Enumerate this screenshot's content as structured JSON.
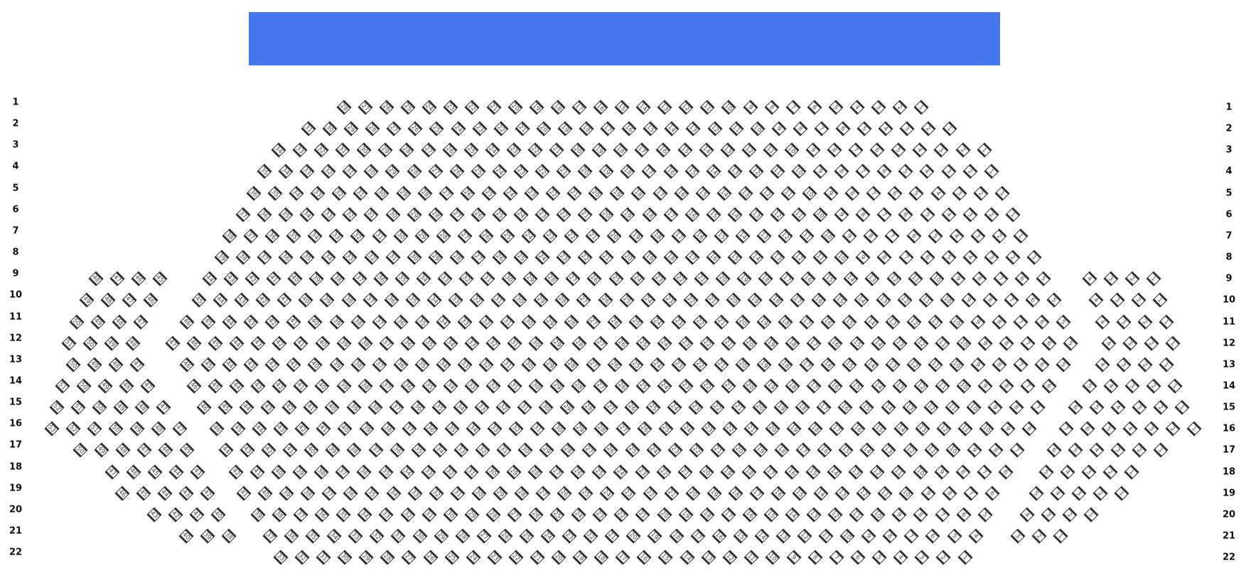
{
  "stage": {
    "color": "#4477ED"
  },
  "seat_style": {
    "border": "#333333",
    "fill": "#ffffff",
    "icon": "seat-icon"
  },
  "rows": [
    {
      "label": "1",
      "sections": [
        {
          "name": "center",
          "from": 28,
          "to": 1
        }
      ]
    },
    {
      "label": "2",
      "sections": [
        {
          "name": "center",
          "from": 31,
          "to": 1
        }
      ]
    },
    {
      "label": "3",
      "sections": [
        {
          "name": "center",
          "from": 34,
          "to": 1
        }
      ]
    },
    {
      "label": "4",
      "sections": [
        {
          "name": "center",
          "from": 35,
          "to": 1
        }
      ]
    },
    {
      "label": "5",
      "sections": [
        {
          "name": "center",
          "from": 36,
          "to": 1
        }
      ]
    },
    {
      "label": "6",
      "sections": [
        {
          "name": "center",
          "from": 37,
          "to": 1
        }
      ]
    },
    {
      "label": "7",
      "sections": [
        {
          "name": "center",
          "from": 38,
          "to": 1
        }
      ]
    },
    {
      "label": "8",
      "sections": [
        {
          "name": "center",
          "from": 39,
          "to": 1
        }
      ]
    },
    {
      "label": "9",
      "sections": [
        {
          "name": "left",
          "from": 48,
          "to": 45
        },
        {
          "name": "center",
          "from": 44,
          "to": 5
        },
        {
          "name": "right",
          "from": 4,
          "to": 1
        }
      ]
    },
    {
      "label": "10",
      "sections": [
        {
          "name": "left",
          "from": 49,
          "to": 46
        },
        {
          "name": "center",
          "from": 45,
          "to": 5
        },
        {
          "name": "right",
          "from": 4,
          "to": 1
        }
      ]
    },
    {
      "label": "11",
      "sections": [
        {
          "name": "left",
          "from": 50,
          "to": 47
        },
        {
          "name": "center",
          "from": 46,
          "to": 5
        },
        {
          "name": "right",
          "from": 4,
          "to": 1
        }
      ]
    },
    {
      "label": "12",
      "sections": [
        {
          "name": "left",
          "from": 51,
          "to": 48
        },
        {
          "name": "center",
          "from": 47,
          "to": 5
        },
        {
          "name": "right",
          "from": 4,
          "to": 1
        }
      ]
    },
    {
      "label": "13",
      "sections": [
        {
          "name": "left",
          "from": 50,
          "to": 47
        },
        {
          "name": "center",
          "from": 46,
          "to": 5
        },
        {
          "name": "right",
          "from": 4,
          "to": 1
        }
      ]
    },
    {
      "label": "14",
      "sections": [
        {
          "name": "left",
          "from": 51,
          "to": 47
        },
        {
          "name": "center",
          "from": 46,
          "to": 6
        },
        {
          "name": "right",
          "from": 5,
          "to": 1
        }
      ]
    },
    {
      "label": "15",
      "sections": [
        {
          "name": "left",
          "from": 52,
          "to": 47
        },
        {
          "name": "center",
          "from": 46,
          "to": 7
        },
        {
          "name": "right",
          "from": 6,
          "to": 1
        }
      ]
    },
    {
      "label": "16",
      "sections": [
        {
          "name": "left",
          "from": 53,
          "to": 47
        },
        {
          "name": "center",
          "from": 46,
          "to": 8
        },
        {
          "name": "right",
          "from": 7,
          "to": 1
        }
      ]
    },
    {
      "label": "17",
      "sections": [
        {
          "name": "left",
          "from": 50,
          "to": 45
        },
        {
          "name": "center",
          "from": 44,
          "to": 7
        },
        {
          "name": "right",
          "from": 6,
          "to": 1
        }
      ]
    },
    {
      "label": "18",
      "sections": [
        {
          "name": "left",
          "from": 47,
          "to": 43
        },
        {
          "name": "center",
          "from": 42,
          "to": 6
        },
        {
          "name": "right",
          "from": 5,
          "to": 1
        }
      ]
    },
    {
      "label": "19",
      "sections": [
        {
          "name": "left",
          "from": 46,
          "to": 42
        },
        {
          "name": "center",
          "from": 41,
          "to": 6
        },
        {
          "name": "right",
          "from": 5,
          "to": 1
        }
      ]
    },
    {
      "label": "20",
      "sections": [
        {
          "name": "left",
          "from": 43,
          "to": 40
        },
        {
          "name": "center",
          "from": 39,
          "to": 5
        },
        {
          "name": "right",
          "from": 4,
          "to": 1
        }
      ]
    },
    {
      "label": "21",
      "sections": [
        {
          "name": "left",
          "from": 40,
          "to": 38
        },
        {
          "name": "center",
          "from": 37,
          "to": 4
        },
        {
          "name": "right",
          "from": 3,
          "to": 1
        }
      ]
    },
    {
      "label": "22",
      "sections": [
        {
          "name": "center",
          "from": 33,
          "to": 1
        }
      ]
    }
  ]
}
